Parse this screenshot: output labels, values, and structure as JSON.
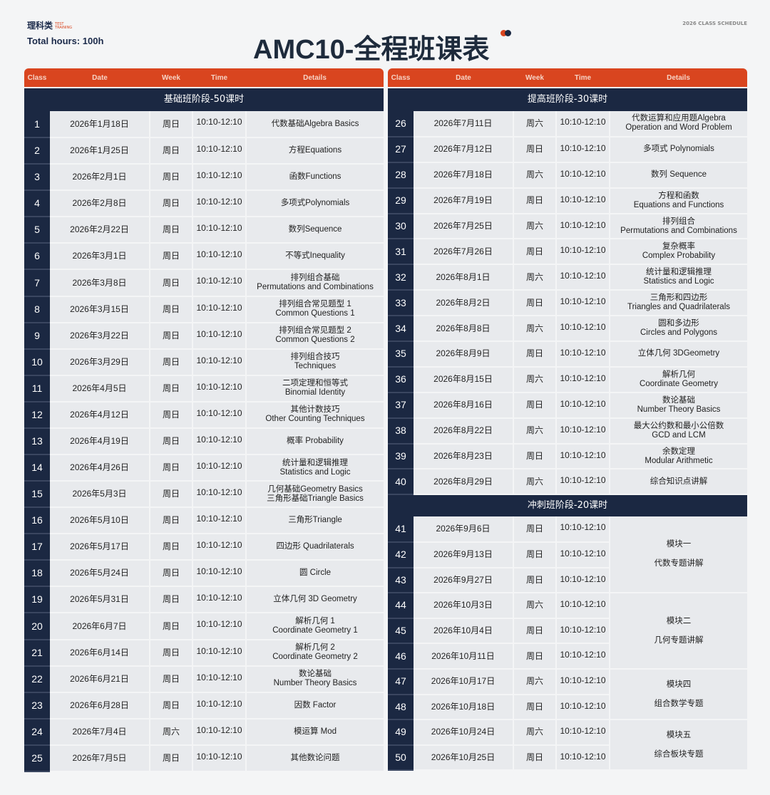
{
  "header": {
    "logo": "理科类",
    "logo_sub": "TEST TRAINING",
    "total_hours": "Total hours:  100h",
    "title": "AMC10-全程班课表",
    "schedule_label": "2026 CLASS SCHEDULE",
    "dot_colors": [
      "#d9451f",
      "#1b2842"
    ]
  },
  "columns": [
    "Class",
    "Date",
    "Week",
    "Time",
    "Details"
  ],
  "colors": {
    "header_red": "#d9451f",
    "navy": "#1b2842",
    "row_bg": "#e8eaed"
  },
  "left": {
    "section": "基础班阶段-50课时",
    "rows": [
      [
        "1",
        "2026年1月18日",
        "周日",
        "10:10-12:10",
        "代数基础Algebra Basics"
      ],
      [
        "2",
        "2026年1月25日",
        "周日",
        "10:10-12:10",
        "方程Equations"
      ],
      [
        "3",
        "2026年2月1日",
        "周日",
        "10:10-12:10",
        "函数Functions"
      ],
      [
        "4",
        "2026年2月8日",
        "周日",
        "10:10-12:10",
        "多项式Polynomials"
      ],
      [
        "5",
        "2026年2月22日",
        "周日",
        "10:10-12:10",
        "数列Sequence"
      ],
      [
        "6",
        "2026年3月1日",
        "周日",
        "10:10-12:10",
        "不等式Inequality"
      ],
      [
        "7",
        "2026年3月8日",
        "周日",
        "10:10-12:10",
        "排列组合基础\nPermutations and Combinations"
      ],
      [
        "8",
        "2026年3月15日",
        "周日",
        "10:10-12:10",
        "排列组合常见题型 1\nCommon Questions 1"
      ],
      [
        "9",
        "2026年3月22日",
        "周日",
        "10:10-12:10",
        "排列组合常见题型 2\nCommon Questions 2"
      ],
      [
        "10",
        "2026年3月29日",
        "周日",
        "10:10-12:10",
        "排列组合技巧\nTechniques"
      ],
      [
        "11",
        "2026年4月5日",
        "周日",
        "10:10-12:10",
        "二项定理和恒等式\nBinomial Identity"
      ],
      [
        "12",
        "2026年4月12日",
        "周日",
        "10:10-12:10",
        "其他计数技巧\nOther Counting Techniques"
      ],
      [
        "13",
        "2026年4月19日",
        "周日",
        "10:10-12:10",
        "概率 Probability"
      ],
      [
        "14",
        "2026年4月26日",
        "周日",
        "10:10-12:10",
        "统计量和逻辑推理\nStatistics and Logic"
      ],
      [
        "15",
        "2026年5月3日",
        "周日",
        "10:10-12:10",
        "几何基础Geometry Basics\n三角形基础Triangle Basics"
      ],
      [
        "16",
        "2026年5月10日",
        "周日",
        "10:10-12:10",
        "三角形Triangle"
      ],
      [
        "17",
        "2026年5月17日",
        "周日",
        "10:10-12:10",
        "四边形 Quadrilaterals"
      ],
      [
        "18",
        "2026年5月24日",
        "周日",
        "10:10-12:10",
        "圆 Circle"
      ],
      [
        "19",
        "2026年5月31日",
        "周日",
        "10:10-12:10",
        "立体几何 3D Geometry"
      ],
      [
        "20",
        "2026年6月7日",
        "周日",
        "10:10-12:10",
        "解析几何 1\nCoordinate Geometry 1"
      ],
      [
        "21",
        "2026年6月14日",
        "周日",
        "10:10-12:10",
        "解析几何 2\nCoordinate Geometry 2"
      ],
      [
        "22",
        "2026年6月21日",
        "周日",
        "10:10-12:10",
        "数论基础\nNumber Theory Basics"
      ],
      [
        "23",
        "2026年6月28日",
        "周日",
        "10:10-12:10",
        "因数 Factor"
      ],
      [
        "24",
        "2026年7月4日",
        "周六",
        "10:10-12:10",
        "模运算 Mod"
      ],
      [
        "25",
        "2026年7月5日",
        "周日",
        "10:10-12:10",
        "其他数论问题"
      ]
    ]
  },
  "right": {
    "section": "提高班阶段-30课时",
    "rows": [
      [
        "26",
        "2026年7月11日",
        "周六",
        "10:10-12:10",
        "代数运算和应用题Algebra\nOperation and Word Problem"
      ],
      [
        "27",
        "2026年7月12日",
        "周日",
        "10:10-12:10",
        "多项式 Polynomials"
      ],
      [
        "28",
        "2026年7月18日",
        "周六",
        "10:10-12:10",
        "数列 Sequence"
      ],
      [
        "29",
        "2026年7月19日",
        "周日",
        "10:10-12:10",
        "方程和函数\nEquations and Functions"
      ],
      [
        "30",
        "2026年7月25日",
        "周六",
        "10:10-12:10",
        "排列组合\nPermutations and Combinations"
      ],
      [
        "31",
        "2026年7月26日",
        "周日",
        "10:10-12:10",
        "复杂概率\nComplex Probability"
      ],
      [
        "32",
        "2026年8月1日",
        "周六",
        "10:10-12:10",
        "统计量和逻辑推理\nStatistics and Logic"
      ],
      [
        "33",
        "2026年8月2日",
        "周日",
        "10:10-12:10",
        "三角形和四边形\nTriangles and Quadrilaterals"
      ],
      [
        "34",
        "2026年8月8日",
        "周六",
        "10:10-12:10",
        "圆和多边形\nCircles and Polygons"
      ],
      [
        "35",
        "2026年8月9日",
        "周日",
        "10:10-12:10",
        "立体几何 3DGeometry"
      ],
      [
        "36",
        "2026年8月15日",
        "周六",
        "10:10-12:10",
        "解析几何\nCoordinate Geometry"
      ],
      [
        "37",
        "2026年8月16日",
        "周日",
        "10:10-12:10",
        "数论基础\nNumber Theory Basics"
      ],
      [
        "38",
        "2026年8月22日",
        "周六",
        "10:10-12:10",
        "最大公约数和最小公倍数\nGCD and LCM"
      ],
      [
        "39",
        "2026年8月23日",
        "周日",
        "10:10-12:10",
        "余数定理\nModular Arithmetic"
      ],
      [
        "40",
        "2026年8月29日",
        "周六",
        "10:10-12:10",
        "综合知识点讲解"
      ]
    ],
    "section2": "冲刺班阶段-20课时",
    "rows2": [
      [
        "41",
        "2026年9月6日",
        "周日",
        "10:10-12:10"
      ],
      [
        "42",
        "2026年9月13日",
        "周日",
        "10:10-12:10"
      ],
      [
        "43",
        "2026年9月27日",
        "周日",
        "10:10-12:10"
      ],
      [
        "44",
        "2026年10月3日",
        "周六",
        "10:10-12:10"
      ],
      [
        "45",
        "2026年10月4日",
        "周日",
        "10:10-12:10"
      ],
      [
        "46",
        "2026年10月11日",
        "周日",
        "10:10-12:10"
      ],
      [
        "47",
        "2026年10月17日",
        "周六",
        "10:10-12:10"
      ],
      [
        "48",
        "2026年10月18日",
        "周日",
        "10:10-12:10"
      ],
      [
        "49",
        "2026年10月24日",
        "周六",
        "10:10-12:10"
      ],
      [
        "50",
        "2026年10月25日",
        "周日",
        "10:10-12:10"
      ]
    ],
    "modules": [
      {
        "span": 3,
        "text": "模块一\n代数专题讲解"
      },
      {
        "span": 3,
        "text": "模块二\n几何专题讲解"
      },
      {
        "span": 2,
        "text": "模块四\n组合数学专题"
      },
      {
        "span": 2,
        "text": "模块五\n综合板块专题"
      }
    ]
  }
}
